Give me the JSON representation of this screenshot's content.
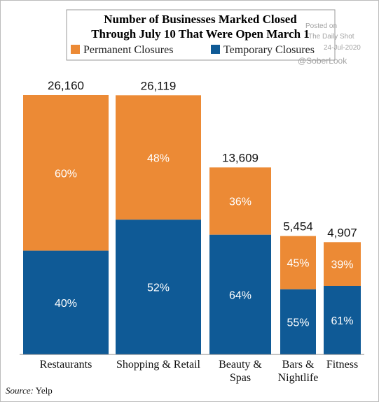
{
  "chart_data": {
    "type": "mekko",
    "title": [
      "Number of Businesses Marked Closed",
      "Through July 10 That Were Open March 1"
    ],
    "categories": [
      "Restaurants",
      "Shopping & Retail",
      "Beauty & Spas",
      "Bars & Nightlife",
      "Fitness"
    ],
    "totals": [
      26160,
      26119,
      13609,
      5454,
      4907
    ],
    "total_labels": [
      "26,160",
      "26,119",
      "13,609",
      "5,454",
      "4,907"
    ],
    "yscale": "sqrt",
    "series": [
      {
        "name": "Permanent Closures",
        "color": "#ec8a35",
        "values": [
          60,
          48,
          36,
          45,
          39
        ],
        "value_labels": [
          "60%",
          "48%",
          "36%",
          "45%",
          "39%"
        ]
      },
      {
        "name": "Temporary Closures",
        "color": "#0f5a96",
        "values": [
          40,
          52,
          64,
          55,
          61
        ],
        "value_labels": [
          "40%",
          "52%",
          "64%",
          "55%",
          "61%"
        ]
      }
    ],
    "source_label": "Source:",
    "source": "Yelp",
    "watermark": [
      "Posted on",
      "The Daily Shot",
      "24-Jul-2020",
      "@SoberLook"
    ]
  }
}
